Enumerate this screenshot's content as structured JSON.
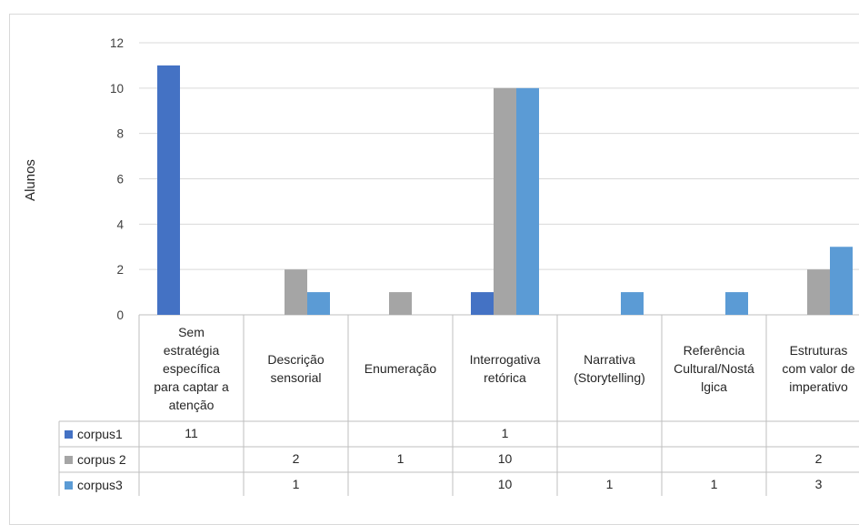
{
  "chart_data": {
    "type": "bar",
    "ylabel": "Alunos",
    "ylim": [
      0,
      12
    ],
    "yticks": [
      0,
      2,
      4,
      6,
      8,
      10,
      12
    ],
    "grid": true,
    "data_table": true,
    "categories": [
      "Sem estratégia específica para captar a atenção",
      "Descrição sensorial",
      "Enumeração",
      "Interrogativa retórica",
      "Narrativa (Storytelling)",
      "Referência Cultural/Nostálgica",
      "Estruturas com valor de imperativo"
    ],
    "category_lines": [
      [
        "Sem",
        "estratégia",
        "específica",
        "para captar a",
        "atenção"
      ],
      [
        "Descrição",
        "sensorial"
      ],
      [
        "Enumeração"
      ],
      [
        "Interrogativa",
        "retórica"
      ],
      [
        "Narrativa",
        "(Storytelling)"
      ],
      [
        "Referência",
        "Cultural/Nostá",
        "lgica"
      ],
      [
        "Estruturas",
        "com valor de",
        "imperativo"
      ]
    ],
    "series": [
      {
        "name": "corpus1",
        "color": "#4472c4",
        "values": [
          11,
          null,
          null,
          1,
          null,
          null,
          null
        ]
      },
      {
        "name": "corpus 2",
        "color": "#a5a5a5",
        "values": [
          null,
          2,
          1,
          10,
          null,
          null,
          2
        ]
      },
      {
        "name": "corpus3",
        "color": "#5b9bd5",
        "values": [
          null,
          1,
          null,
          10,
          1,
          1,
          3
        ]
      }
    ]
  }
}
